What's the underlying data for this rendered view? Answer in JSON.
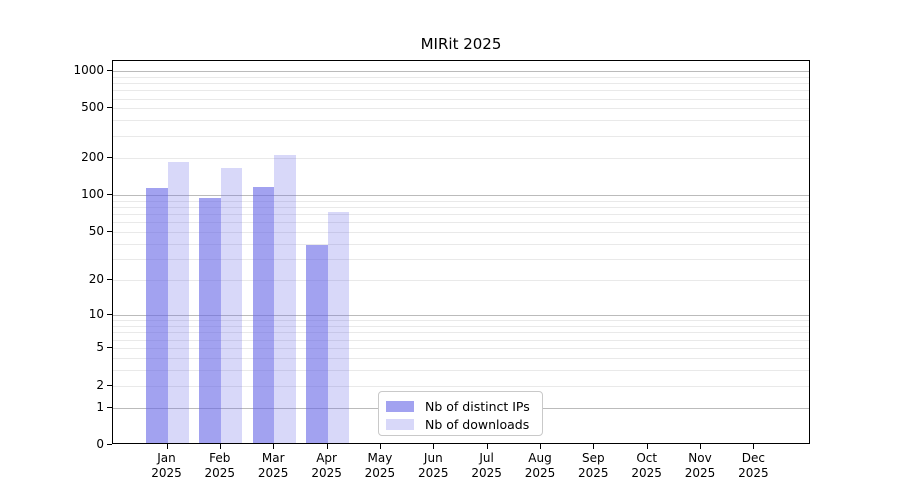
{
  "figure_title": "MIRit 2025",
  "chart_data": {
    "type": "bar",
    "title": "MIRit 2025",
    "categories": [
      "Jan",
      "Feb",
      "Mar",
      "Apr",
      "May",
      "Jun",
      "Jul",
      "Aug",
      "Sep",
      "Oct",
      "Nov",
      "Dec"
    ],
    "category_year": "2025",
    "series": [
      {
        "name": "Nb of distinct IPs",
        "color": "rgba(100,100,230,0.6)",
        "values": [
          110,
          92,
          112,
          38,
          0,
          0,
          0,
          0,
          0,
          0,
          0,
          0
        ]
      },
      {
        "name": "Nb of downloads",
        "color": "rgba(100,100,230,0.25)",
        "values": [
          180,
          160,
          205,
          70,
          0,
          0,
          0,
          0,
          0,
          0,
          0,
          0
        ]
      }
    ],
    "yscale": "log10(value+1)",
    "yticks": [
      0,
      1,
      2,
      5,
      10,
      20,
      50,
      100,
      200,
      500,
      1000
    ],
    "ylim": [
      0,
      1200
    ],
    "xlabel": "",
    "ylabel": "",
    "grid": true,
    "legend": {
      "entries": [
        "Nb of distinct IPs",
        "Nb of downloads"
      ],
      "position": "lower center"
    }
  },
  "colors": {
    "bar_dark": "rgba(100,100,230,0.6)",
    "bar_light": "rgba(100,100,230,0.25)",
    "grid_major": "#bbbbbb",
    "grid_minor": "#e9e9e9",
    "axis": "#000000",
    "background": "#ffffff"
  }
}
